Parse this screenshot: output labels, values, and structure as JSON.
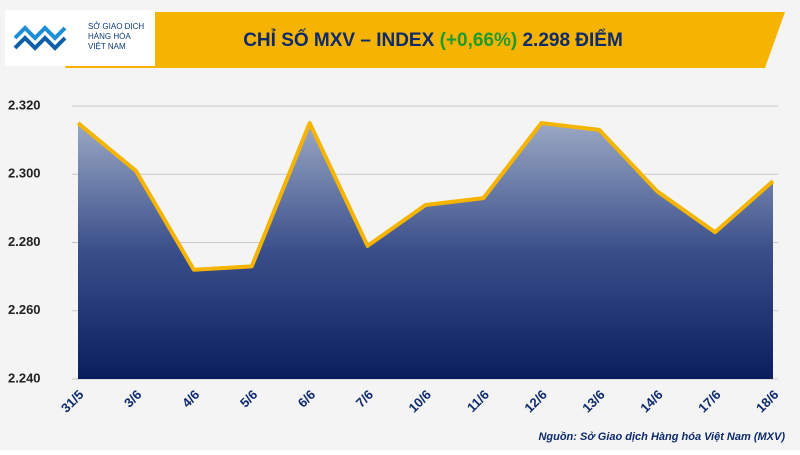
{
  "logo": {
    "line1": "SỞ GIAO DỊCH",
    "line2": "HÀNG HÓA",
    "line3": "VIỆT NAM"
  },
  "chart_data": {
    "type": "area",
    "title": "CHỈ SỐ MXV – INDEX",
    "title_change": "(+0,66%)",
    "title_value": "2.298 ĐIỂM",
    "categories": [
      "31/5",
      "3/6",
      "4/6",
      "5/6",
      "6/6",
      "7/6",
      "10/6",
      "11/6",
      "12/6",
      "13/6",
      "14/6",
      "17/6",
      "18/6"
    ],
    "values": [
      2315,
      2301,
      2272,
      2273,
      2315,
      2279,
      2291,
      2293,
      2315,
      2313,
      2295,
      2283,
      2298
    ],
    "color": "#f5b400",
    "ylim": [
      2240,
      2320
    ],
    "yticks": [
      {
        "value": 2240,
        "label": "2.240"
      },
      {
        "value": 2260,
        "label": "2.260"
      },
      {
        "value": 2280,
        "label": "2.280"
      },
      {
        "value": 2300,
        "label": "2.300"
      },
      {
        "value": 2320,
        "label": "2.320"
      }
    ],
    "grid": true,
    "source": "Nguồn: Sở Giao dịch Hàng hóa Việt Nam (MXV)"
  }
}
